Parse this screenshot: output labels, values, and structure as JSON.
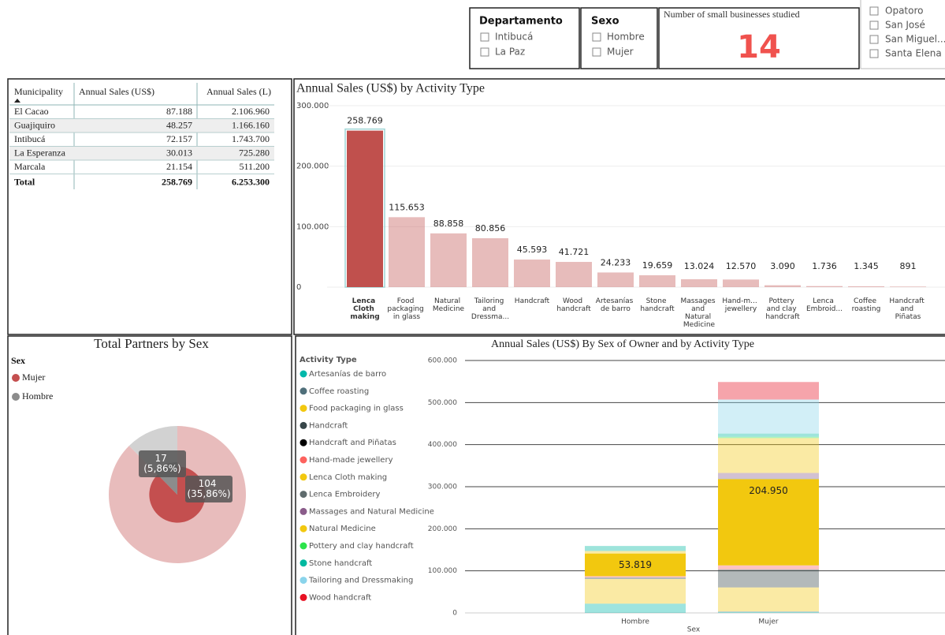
{
  "slicers": [
    {
      "title": "Departamento",
      "items": [
        "Intibucá",
        "La Paz"
      ]
    },
    {
      "title": "Sexo",
      "items": [
        "Hombre",
        "Mujer"
      ]
    }
  ],
  "card": {
    "title": "Number of small businesses studied",
    "value": 14
  },
  "municipality_slicer": {
    "items": [
      "Opatoro",
      "San José",
      "San Miguel...",
      "Santa Elena"
    ]
  },
  "table": {
    "header": [
      "Municipality",
      "Annual Sales (US$)",
      "Annual Sales (L)"
    ],
    "rows": [
      [
        "El Cacao",
        "87.188",
        "2.106.960"
      ],
      [
        "Guajiquiro",
        "48.257",
        "1.166.160"
      ],
      [
        "Intibucá",
        "72.157",
        "1.743.700"
      ],
      [
        "La Esperanza",
        "30.013",
        "725.280"
      ],
      [
        "Marcala",
        "21.154",
        "511.200"
      ]
    ],
    "total": [
      "Total",
      "258.769",
      "6.253.300"
    ]
  },
  "chart_data": [
    {
      "type": "bar",
      "title": "Annual Sales (US$) by Activity Type",
      "categories": [
        "Lenca Cloth making",
        "Food packaging in glass",
        "Natural Medicine",
        "Tailoring and Dressma...",
        "Handcraft",
        "Wood handcraft",
        "Artesanías de barro",
        "Stone handcraft",
        "Massages and Natural Medicine",
        "Hand-m... jewellery",
        "Pottery and clay handcraft",
        "Lenca Embroid...",
        "Coffee roasting",
        "Handcraft and Piñatas"
      ],
      "values": [
        258769,
        115653,
        88858,
        80856,
        45593,
        41721,
        24233,
        19659,
        13024,
        12570,
        3090,
        1736,
        1345,
        891
      ],
      "value_labels": [
        "258.769",
        "115.653",
        "88.858",
        "80.856",
        "45.593",
        "41.721",
        "24.233",
        "19.659",
        "13.024",
        "12.570",
        "3.090",
        "1.736",
        "1.345",
        "891"
      ],
      "color": "#c0504d",
      "highlight": "Lenca Cloth making",
      "ylim": [
        0,
        300000
      ],
      "yticks": [
        0,
        {
          "value": 100000,
          "label": "100.000"
        },
        {
          "value": 200000,
          "label": "200.000"
        },
        {
          "value": 300000,
          "label": "300.000"
        }
      ],
      "grid": true
    },
    {
      "type": "pie",
      "title": "Total Partners by Sex",
      "legend_title": "Sex",
      "categories": [
        "Mujer",
        "Hombre"
      ],
      "series": [
        {
          "values": [
            254,
            36
          ],
          "colors": [
            "#e8bcbc",
            "#d2d2d2"
          ]
        },
        {
          "values": [
            104,
            17
          ],
          "value_labels": [
            "104 (35,86%)",
            "17 (5,86%)"
          ],
          "colors": [
            "#c44f4f",
            "#8c8c8c"
          ]
        }
      ]
    },
    {
      "type": "stacked_bar",
      "title": "Annual Sales (US$) By Sex of Owner and by Activity Type",
      "legend_title": "Activity Type",
      "x_label": "Sex",
      "categories": [
        "Hombre",
        "Mujer"
      ],
      "series": [
        {
          "name": "Artesanías de barro",
          "color": "#01b8aa",
          "values": [
            22000,
            2233
          ]
        },
        {
          "name": "Coffee roasting",
          "color": "#4f6f7a",
          "values": [
            0,
            1345
          ]
        },
        {
          "name": "Food packaging in glass",
          "color": "#f2c80f",
          "values": [
            58653,
            57000
          ]
        },
        {
          "name": "Handcraft",
          "color": "#374649",
          "values": [
            3593,
            42000
          ]
        },
        {
          "name": "Handcraft and Piñatas",
          "color": "#000000",
          "values": [
            0,
            891
          ]
        },
        {
          "name": "Hand-made jewellery",
          "color": "#fd625e",
          "values": [
            3070,
            9500
          ]
        },
        {
          "name": "Lenca Cloth making",
          "color": "#f2c80f",
          "values": [
            53819,
            204950
          ],
          "value_labels": [
            "53.819",
            "204.950"
          ]
        },
        {
          "name": "Lenca Embroidery",
          "color": "#5f6b6d",
          "values": [
            0,
            1736
          ]
        },
        {
          "name": "Massages and Natural Medicine",
          "color": "#8a5c8a",
          "values": [
            0,
            13024
          ]
        },
        {
          "name": "Natural Medicine",
          "color": "#f2c80f",
          "values": [
            6000,
            82858
          ]
        },
        {
          "name": "Pottery and clay handcraft",
          "color": "#2be34a",
          "values": [
            0,
            3090
          ]
        },
        {
          "name": "Stone handcraft",
          "color": "#00b9a0",
          "values": [
            12000,
            7659
          ]
        },
        {
          "name": "Tailoring and Dressmaking",
          "color": "#8ad4eb",
          "values": [
            0,
            80856
          ]
        },
        {
          "name": "Wood handcraft",
          "color": "#e81123",
          "values": [
            0,
            41721
          ]
        }
      ],
      "highlight": "Lenca Cloth making",
      "ylim": [
        0,
        600000
      ],
      "yticks": [
        0,
        {
          "value": 100000,
          "label": "100.000"
        },
        {
          "value": 200000,
          "label": "200.000"
        },
        {
          "value": 300000,
          "label": "300.000"
        },
        {
          "value": 400000,
          "label": "400.000"
        },
        {
          "value": 500000,
          "label": "500.000"
        },
        {
          "value": 600000,
          "label": "600.000"
        }
      ],
      "grid": true
    }
  ]
}
